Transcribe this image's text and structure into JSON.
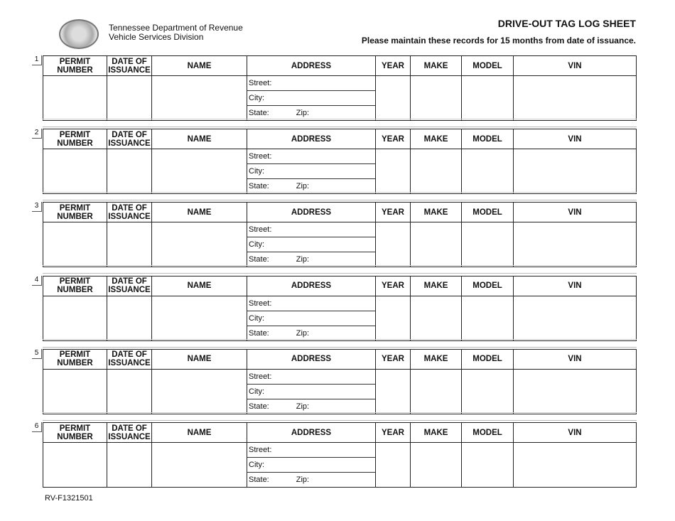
{
  "header": {
    "org_line1": "Tennessee Department of Revenue",
    "org_line2": "Vehicle Services Division",
    "title": "DRIVE-OUT TAG LOG SHEET",
    "note": "Please maintain these records for 15 months from date of issuance."
  },
  "columns": {
    "permit": "PERMIT NUMBER",
    "date1": "DATE OF",
    "date2": "ISSUANCE",
    "name": "NAME",
    "address": "ADDRESS",
    "year": "YEAR",
    "make": "MAKE",
    "model": "MODEL",
    "vin": "VIN"
  },
  "address_labels": {
    "street": "Street:",
    "city": "City:",
    "state": "State:",
    "zip": "Zip:"
  },
  "sections": [
    "1",
    "2",
    "3",
    "4",
    "5",
    "6"
  ],
  "footer": {
    "form_number": "RV-F1321501"
  }
}
